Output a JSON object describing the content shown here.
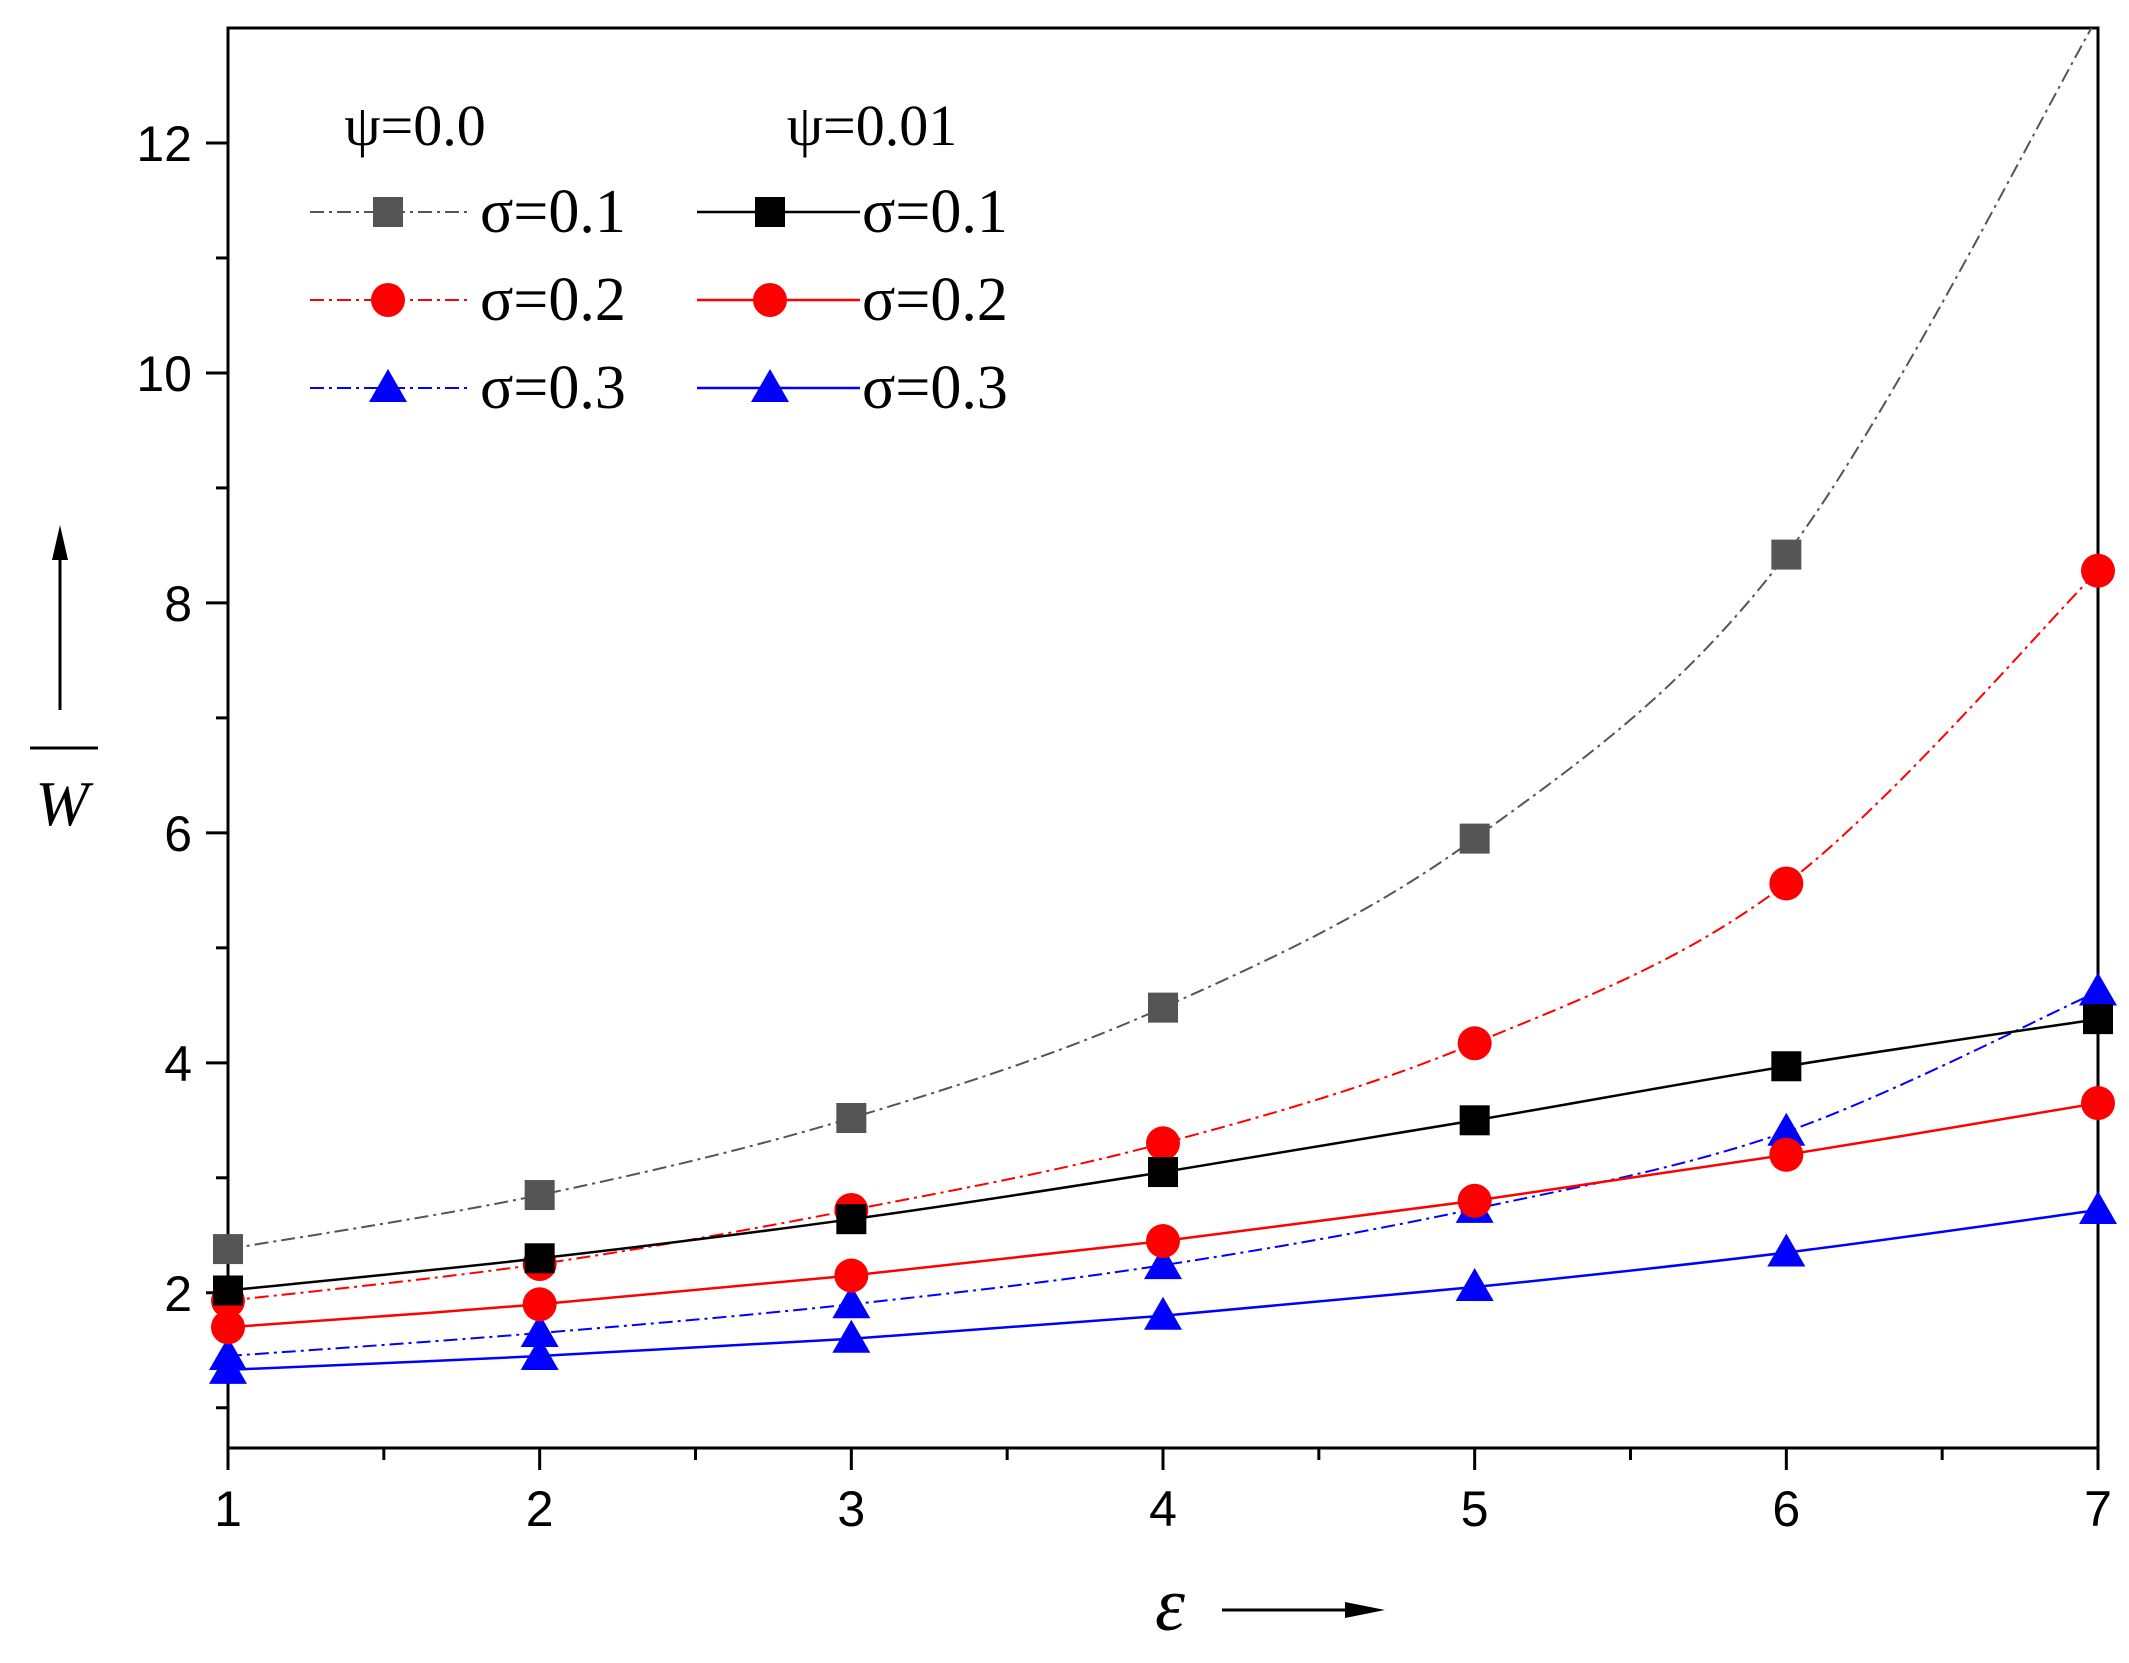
{
  "chart_data": {
    "type": "line",
    "title": "",
    "xlabel": "ε",
    "ylabel": "W",
    "xlim": [
      1,
      7
    ],
    "ylim": [
      0.65,
      13
    ],
    "xticks": [
      "1",
      "2",
      "3",
      "4",
      "5",
      "6",
      "7"
    ],
    "yticks": [
      "2",
      "4",
      "6",
      "8",
      "10",
      "12"
    ],
    "x": [
      1,
      2,
      3,
      4,
      5,
      6,
      7
    ],
    "legend_headers": [
      "ψ=0.0",
      "ψ=0.01"
    ],
    "legend_position": "top-left",
    "series": [
      {
        "name": "σ=0.1",
        "group": "ψ=0.0",
        "color": "#555555",
        "marker": "square",
        "line": "dash-dot",
        "values": [
          2.38,
          2.85,
          3.52,
          4.48,
          5.95,
          8.42,
          13.1
        ]
      },
      {
        "name": "σ=0.2",
        "group": "ψ=0.0",
        "color": "#ff0000",
        "marker": "circle",
        "line": "dash-dot",
        "values": [
          1.93,
          2.25,
          2.72,
          3.3,
          4.17,
          5.56,
          8.28
        ]
      },
      {
        "name": "σ=0.3",
        "group": "ψ=0.0",
        "color": "#0000ff",
        "marker": "triangle",
        "line": "dash-dot",
        "values": [
          1.45,
          1.65,
          1.9,
          2.24,
          2.73,
          3.4,
          4.62
        ]
      },
      {
        "name": "σ=0.1",
        "group": "ψ=0.01",
        "color": "#000000",
        "marker": "square",
        "line": "solid",
        "values": [
          2.02,
          2.3,
          2.64,
          3.05,
          3.5,
          3.97,
          4.38
        ]
      },
      {
        "name": "σ=0.2",
        "group": "ψ=0.01",
        "color": "#ff0000",
        "marker": "circle",
        "line": "solid",
        "values": [
          1.7,
          1.9,
          2.15,
          2.45,
          2.8,
          3.2,
          3.65
        ]
      },
      {
        "name": "σ=0.3",
        "group": "ψ=0.01",
        "color": "#0000ff",
        "marker": "triangle",
        "line": "solid",
        "values": [
          1.33,
          1.45,
          1.6,
          1.8,
          2.05,
          2.35,
          2.72
        ]
      }
    ]
  }
}
